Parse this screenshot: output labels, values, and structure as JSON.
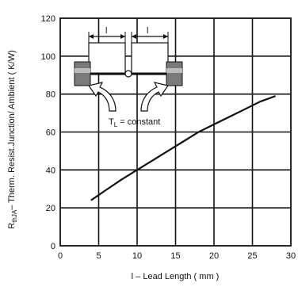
{
  "chart_data": {
    "type": "line",
    "xlabel": "l – Lead Length ( mm )",
    "ylabel": "R",
    "ylabel_sub": "thJA",
    "ylabel_rest": "– Therm. Resist.Junction/ Ambient ( K/W)",
    "xlim": [
      0,
      30
    ],
    "ylim": [
      0,
      120
    ],
    "x_ticks": [
      "0",
      "5",
      "10",
      "15",
      "20",
      "25",
      "30"
    ],
    "y_ticks": [
      "0",
      "20",
      "40",
      "60",
      "80",
      "100",
      "120"
    ],
    "grid": true,
    "series": [
      {
        "x": [
          4,
          6,
          8,
          10,
          12,
          14,
          16,
          18,
          20,
          22,
          24,
          26,
          28
        ],
        "y": [
          24,
          29.5,
          35,
          40,
          45,
          50,
          55,
          60,
          64,
          68,
          72,
          76,
          79
        ]
      }
    ],
    "annotations": {
      "lead_label_left": "l",
      "lead_label_right": "l",
      "constant_label_main": "T",
      "constant_label_sub": "L",
      "constant_label_rest": " = constant"
    }
  }
}
